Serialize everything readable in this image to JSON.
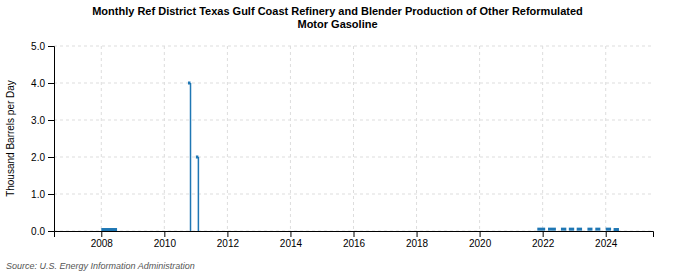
{
  "chart_data": {
    "type": "segment",
    "title": "Monthly Ref District Texas Gulf Coast Refinery and Blender Production of Other Reformulated\nMotor Gasoline",
    "ylabel": "Thousand Barrels per Day",
    "source": "Source: U.S. Energy Information Administration",
    "series": [
      {
        "type": "segment",
        "x_start": [
          2008.0,
          2010.75,
          2011.0,
          2021.83,
          2022.17,
          2022.58,
          2022.83,
          2023.08,
          2023.42,
          2023.67,
          2024.0,
          2024.25
        ],
        "x_end": [
          2008.5,
          2010.83,
          2011.08,
          2022.08,
          2022.42,
          2022.75,
          2023.0,
          2023.25,
          2023.58,
          2023.83,
          2024.17,
          2024.42
        ],
        "values": [
          0.04,
          4.0,
          2.0,
          0.05,
          0.05,
          0.05,
          0.05,
          0.05,
          0.05,
          0.05,
          0.05,
          0.04
        ]
      },
      {
        "type": "spike",
        "x": [
          2010.83,
          2011.08
        ],
        "values": [
          4.0,
          2.0
        ]
      }
    ],
    "xlim": [
      2006.5,
      2025.5
    ],
    "xticks": [
      2008,
      2010,
      2012,
      2014,
      2016,
      2018,
      2020,
      2022,
      2024
    ],
    "ylim": [
      0.0,
      5.0
    ],
    "yticks": [
      {
        "value": 0,
        "label": "0.0"
      },
      {
        "value": 1,
        "label": "1.0"
      },
      {
        "value": 2,
        "label": "2.0"
      },
      {
        "value": 3,
        "label": "3.0"
      },
      {
        "value": 4,
        "label": "4.0"
      },
      {
        "value": 5,
        "label": "5.0"
      }
    ],
    "grid": true
  }
}
